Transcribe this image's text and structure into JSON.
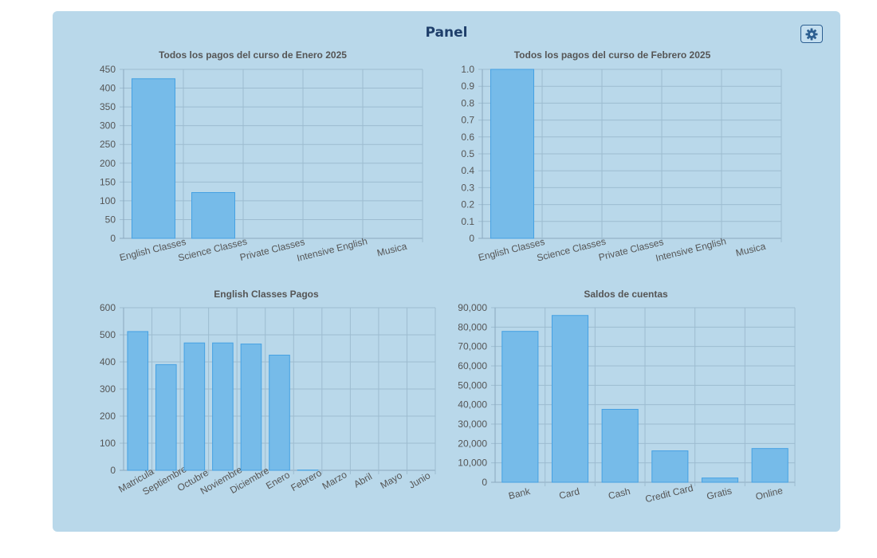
{
  "page": {
    "title": "Panel",
    "settings_icon": "gear-icon"
  },
  "colors": {
    "panel_bg": "#b9d8ea",
    "bar_fill": "#76bbe9",
    "bar_border": "#45a1e3",
    "title_color": "#1f3f6b"
  },
  "chart_data": [
    {
      "type": "bar",
      "title": "Todos los pagos del curso de Enero 2025",
      "categories": [
        "English Classes",
        "Science Classes",
        "Private Classes",
        "Intensive English",
        "Musica"
      ],
      "values": [
        425,
        122,
        0,
        0,
        0
      ],
      "ylim": [
        0,
        450
      ],
      "yticks": [
        "0",
        "50",
        "100",
        "150",
        "200",
        "250",
        "300",
        "350",
        "400",
        "450"
      ],
      "grid": true,
      "legend": "none"
    },
    {
      "type": "bar",
      "title": "Todos los pagos del curso de Febrero 2025",
      "categories": [
        "English Classes",
        "Science Classes",
        "Private Classes",
        "Intensive English",
        "Musica"
      ],
      "values": [
        1,
        0,
        0,
        0,
        0
      ],
      "ylim": [
        0,
        1
      ],
      "yticks": [
        "0",
        "0.1",
        "0.2",
        "0.3",
        "0.4",
        "0.5",
        "0.6",
        "0.7",
        "0.8",
        "0.9",
        "1.0"
      ],
      "grid": true,
      "legend": "none"
    },
    {
      "type": "bar",
      "title": "English Classes Pagos",
      "categories": [
        "Matricula",
        "Septiembre",
        "Octubre",
        "Noviembre",
        "Diciembre",
        "Enero",
        "Febrero",
        "Marzo",
        "Abril",
        "Mayo",
        "Junio"
      ],
      "values": [
        512,
        390,
        470,
        470,
        466,
        425,
        1,
        0,
        0,
        0,
        0
      ],
      "ylim": [
        0,
        600
      ],
      "yticks": [
        "0",
        "100",
        "200",
        "300",
        "400",
        "500",
        "600"
      ],
      "grid": true,
      "legend": "none"
    },
    {
      "type": "bar",
      "title": "Saldos de cuentas",
      "categories": [
        "Bank",
        "Card",
        "Cash",
        "Credit Card",
        "Gratis",
        "Online"
      ],
      "values": [
        77800,
        86000,
        37600,
        16200,
        2200,
        17400
      ],
      "ylim": [
        0,
        90000
      ],
      "yticks": [
        "0",
        "10,000",
        "20,000",
        "30,000",
        "40,000",
        "50,000",
        "60,000",
        "70,000",
        "80,000",
        "90,000"
      ],
      "grid": true,
      "legend": "none"
    }
  ]
}
